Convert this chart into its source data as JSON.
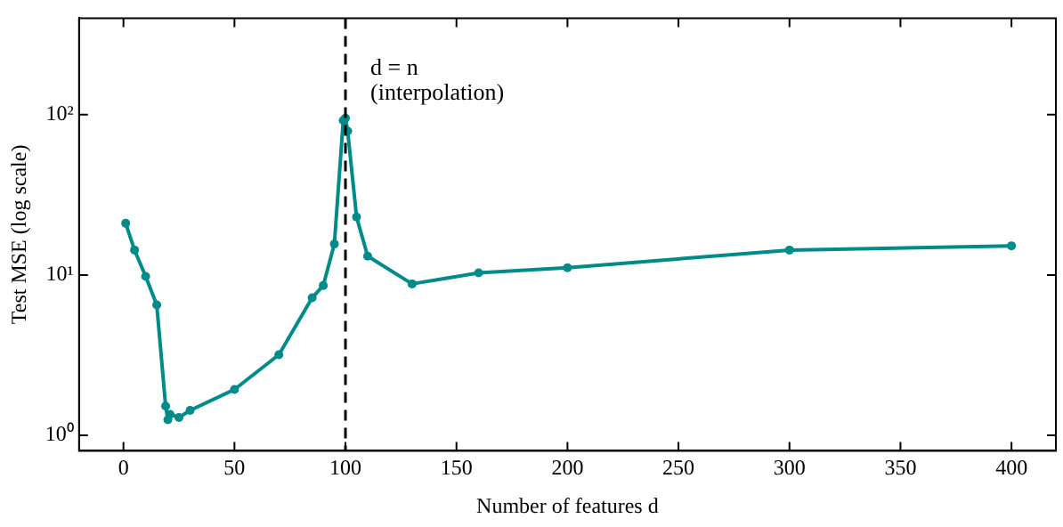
{
  "chart_data": {
    "type": "line",
    "xlabel": "Number of features d",
    "ylabel": "Test MSE (log scale)",
    "x": [
      1,
      5,
      10,
      15,
      19,
      20,
      21,
      25,
      30,
      50,
      70,
      85,
      90,
      95,
      99,
      100,
      101,
      105,
      110,
      130,
      160,
      200,
      300,
      400
    ],
    "series": [
      {
        "color": "#008b8b",
        "values": [
          21,
          14.3,
          9.8,
          6.5,
          1.52,
          1.25,
          1.35,
          1.29,
          1.43,
          1.93,
          3.18,
          7.2,
          8.6,
          15.6,
          92,
          95,
          79,
          23,
          13.1,
          8.8,
          10.3,
          11.1,
          14.3,
          15.2
        ]
      }
    ],
    "log": "y",
    "xlim": [
      -20,
      420
    ],
    "xticks": [
      0,
      50,
      100,
      150,
      200,
      250,
      300,
      350,
      400
    ],
    "ylim": [
      0.8,
      400
    ],
    "yticks": [
      {
        "value": 1,
        "label": "10⁰"
      },
      {
        "value": 10,
        "label": "10¹"
      },
      {
        "value": 100,
        "label": "10²"
      }
    ],
    "grid": false,
    "legend": false,
    "marker": "circle",
    "line_style": "solid",
    "ref_lines": [
      {
        "axis": "x",
        "value": 100,
        "label": "d = n\n(interpolation)",
        "color": "#000000",
        "line_style": "dashed"
      }
    ]
  }
}
